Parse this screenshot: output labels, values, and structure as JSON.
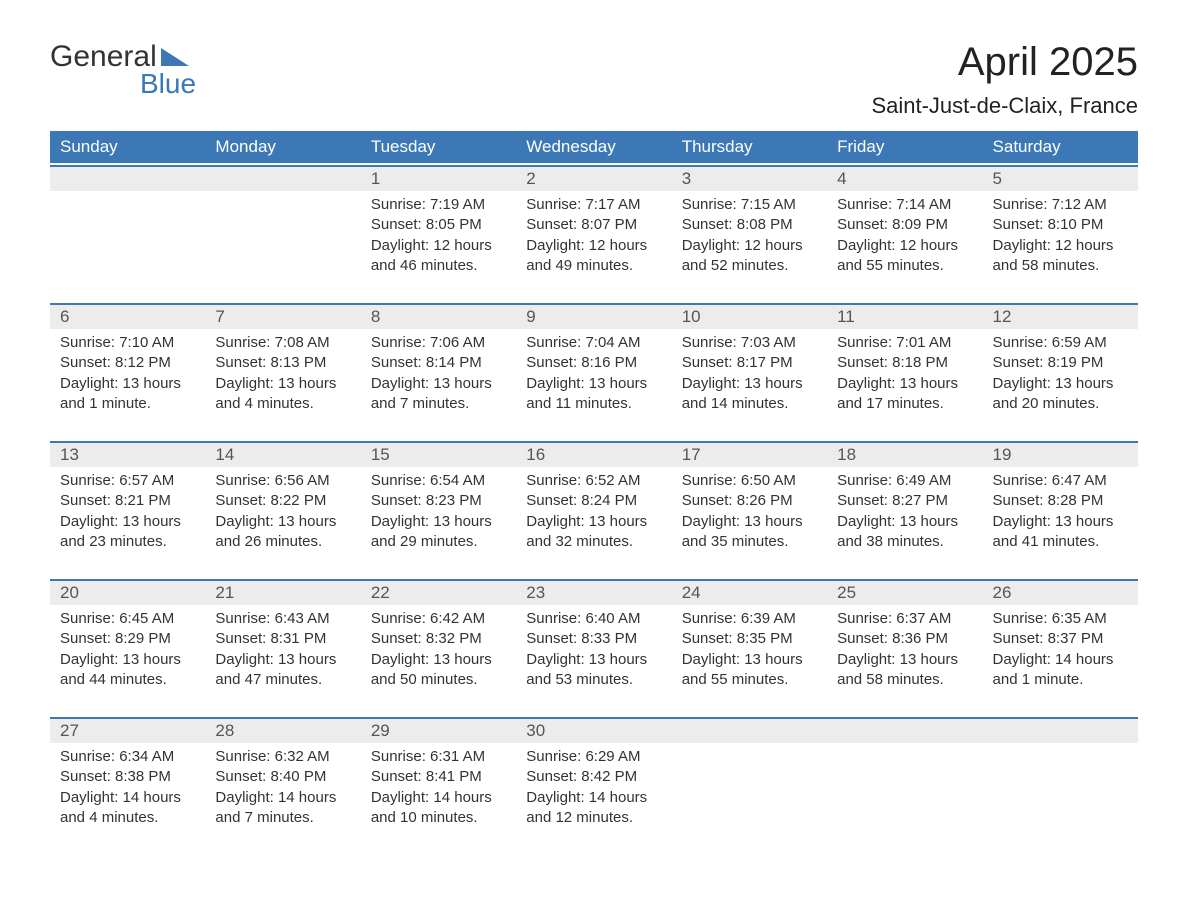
{
  "logo": {
    "text1": "General",
    "text2": "Blue"
  },
  "title": "April 2025",
  "location": "Saint-Just-de-Claix, France",
  "colors": {
    "header_bg": "#3b78b5",
    "header_text": "#ffffff",
    "daynum_bg": "#ececec",
    "border_top": "#3b78b5",
    "body_text": "#333333",
    "logo_blue": "#3b78b5"
  },
  "typography": {
    "title_fontsize": 40,
    "location_fontsize": 22,
    "header_fontsize": 17,
    "cell_fontsize": 15
  },
  "dayNames": [
    "Sunday",
    "Monday",
    "Tuesday",
    "Wednesday",
    "Thursday",
    "Friday",
    "Saturday"
  ],
  "weeks": [
    [
      {
        "n": "",
        "sunrise": "",
        "sunset": "",
        "daylight": ""
      },
      {
        "n": "",
        "sunrise": "",
        "sunset": "",
        "daylight": ""
      },
      {
        "n": "1",
        "sunrise": "Sunrise: 7:19 AM",
        "sunset": "Sunset: 8:05 PM",
        "daylight": "Daylight: 12 hours and 46 minutes."
      },
      {
        "n": "2",
        "sunrise": "Sunrise: 7:17 AM",
        "sunset": "Sunset: 8:07 PM",
        "daylight": "Daylight: 12 hours and 49 minutes."
      },
      {
        "n": "3",
        "sunrise": "Sunrise: 7:15 AM",
        "sunset": "Sunset: 8:08 PM",
        "daylight": "Daylight: 12 hours and 52 minutes."
      },
      {
        "n": "4",
        "sunrise": "Sunrise: 7:14 AM",
        "sunset": "Sunset: 8:09 PM",
        "daylight": "Daylight: 12 hours and 55 minutes."
      },
      {
        "n": "5",
        "sunrise": "Sunrise: 7:12 AM",
        "sunset": "Sunset: 8:10 PM",
        "daylight": "Daylight: 12 hours and 58 minutes."
      }
    ],
    [
      {
        "n": "6",
        "sunrise": "Sunrise: 7:10 AM",
        "sunset": "Sunset: 8:12 PM",
        "daylight": "Daylight: 13 hours and 1 minute."
      },
      {
        "n": "7",
        "sunrise": "Sunrise: 7:08 AM",
        "sunset": "Sunset: 8:13 PM",
        "daylight": "Daylight: 13 hours and 4 minutes."
      },
      {
        "n": "8",
        "sunrise": "Sunrise: 7:06 AM",
        "sunset": "Sunset: 8:14 PM",
        "daylight": "Daylight: 13 hours and 7 minutes."
      },
      {
        "n": "9",
        "sunrise": "Sunrise: 7:04 AM",
        "sunset": "Sunset: 8:16 PM",
        "daylight": "Daylight: 13 hours and 11 minutes."
      },
      {
        "n": "10",
        "sunrise": "Sunrise: 7:03 AM",
        "sunset": "Sunset: 8:17 PM",
        "daylight": "Daylight: 13 hours and 14 minutes."
      },
      {
        "n": "11",
        "sunrise": "Sunrise: 7:01 AM",
        "sunset": "Sunset: 8:18 PM",
        "daylight": "Daylight: 13 hours and 17 minutes."
      },
      {
        "n": "12",
        "sunrise": "Sunrise: 6:59 AM",
        "sunset": "Sunset: 8:19 PM",
        "daylight": "Daylight: 13 hours and 20 minutes."
      }
    ],
    [
      {
        "n": "13",
        "sunrise": "Sunrise: 6:57 AM",
        "sunset": "Sunset: 8:21 PM",
        "daylight": "Daylight: 13 hours and 23 minutes."
      },
      {
        "n": "14",
        "sunrise": "Sunrise: 6:56 AM",
        "sunset": "Sunset: 8:22 PM",
        "daylight": "Daylight: 13 hours and 26 minutes."
      },
      {
        "n": "15",
        "sunrise": "Sunrise: 6:54 AM",
        "sunset": "Sunset: 8:23 PM",
        "daylight": "Daylight: 13 hours and 29 minutes."
      },
      {
        "n": "16",
        "sunrise": "Sunrise: 6:52 AM",
        "sunset": "Sunset: 8:24 PM",
        "daylight": "Daylight: 13 hours and 32 minutes."
      },
      {
        "n": "17",
        "sunrise": "Sunrise: 6:50 AM",
        "sunset": "Sunset: 8:26 PM",
        "daylight": "Daylight: 13 hours and 35 minutes."
      },
      {
        "n": "18",
        "sunrise": "Sunrise: 6:49 AM",
        "sunset": "Sunset: 8:27 PM",
        "daylight": "Daylight: 13 hours and 38 minutes."
      },
      {
        "n": "19",
        "sunrise": "Sunrise: 6:47 AM",
        "sunset": "Sunset: 8:28 PM",
        "daylight": "Daylight: 13 hours and 41 minutes."
      }
    ],
    [
      {
        "n": "20",
        "sunrise": "Sunrise: 6:45 AM",
        "sunset": "Sunset: 8:29 PM",
        "daylight": "Daylight: 13 hours and 44 minutes."
      },
      {
        "n": "21",
        "sunrise": "Sunrise: 6:43 AM",
        "sunset": "Sunset: 8:31 PM",
        "daylight": "Daylight: 13 hours and 47 minutes."
      },
      {
        "n": "22",
        "sunrise": "Sunrise: 6:42 AM",
        "sunset": "Sunset: 8:32 PM",
        "daylight": "Daylight: 13 hours and 50 minutes."
      },
      {
        "n": "23",
        "sunrise": "Sunrise: 6:40 AM",
        "sunset": "Sunset: 8:33 PM",
        "daylight": "Daylight: 13 hours and 53 minutes."
      },
      {
        "n": "24",
        "sunrise": "Sunrise: 6:39 AM",
        "sunset": "Sunset: 8:35 PM",
        "daylight": "Daylight: 13 hours and 55 minutes."
      },
      {
        "n": "25",
        "sunrise": "Sunrise: 6:37 AM",
        "sunset": "Sunset: 8:36 PM",
        "daylight": "Daylight: 13 hours and 58 minutes."
      },
      {
        "n": "26",
        "sunrise": "Sunrise: 6:35 AM",
        "sunset": "Sunset: 8:37 PM",
        "daylight": "Daylight: 14 hours and 1 minute."
      }
    ],
    [
      {
        "n": "27",
        "sunrise": "Sunrise: 6:34 AM",
        "sunset": "Sunset: 8:38 PM",
        "daylight": "Daylight: 14 hours and 4 minutes."
      },
      {
        "n": "28",
        "sunrise": "Sunrise: 6:32 AM",
        "sunset": "Sunset: 8:40 PM",
        "daylight": "Daylight: 14 hours and 7 minutes."
      },
      {
        "n": "29",
        "sunrise": "Sunrise: 6:31 AM",
        "sunset": "Sunset: 8:41 PM",
        "daylight": "Daylight: 14 hours and 10 minutes."
      },
      {
        "n": "30",
        "sunrise": "Sunrise: 6:29 AM",
        "sunset": "Sunset: 8:42 PM",
        "daylight": "Daylight: 14 hours and 12 minutes."
      },
      {
        "n": "",
        "sunrise": "",
        "sunset": "",
        "daylight": ""
      },
      {
        "n": "",
        "sunrise": "",
        "sunset": "",
        "daylight": ""
      },
      {
        "n": "",
        "sunrise": "",
        "sunset": "",
        "daylight": ""
      }
    ]
  ]
}
